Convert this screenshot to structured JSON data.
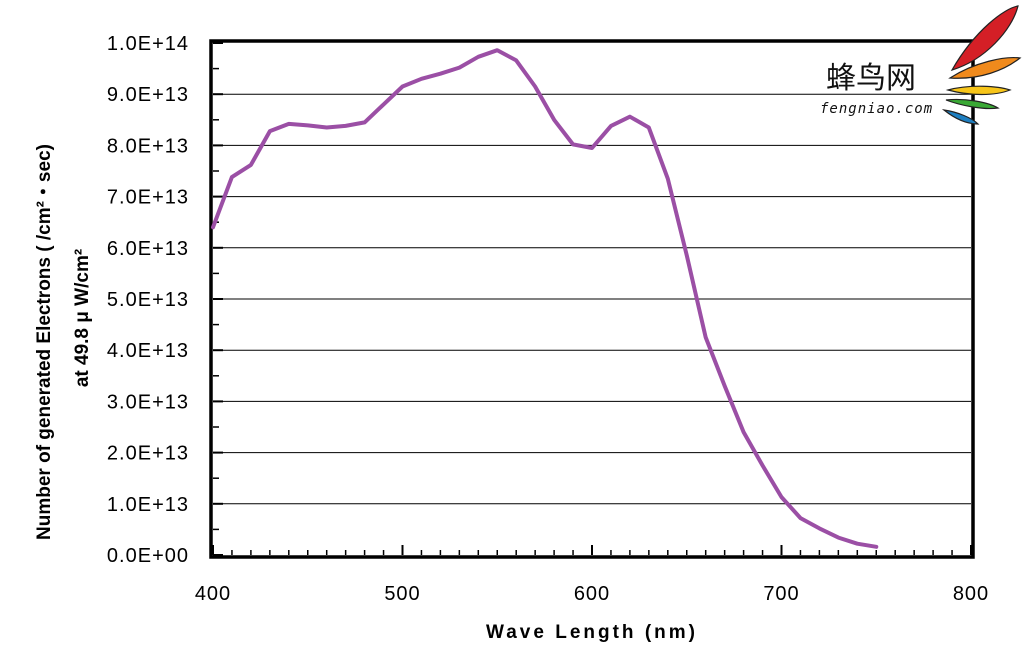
{
  "chart_data": {
    "type": "line",
    "xlabel": "Wave Length (nm)",
    "ylabel_line1": "Number of generated Electrons ( /cm²・sec)",
    "ylabel_line2": "at 49.8 μ W/cm²",
    "xlim": [
      400,
      800
    ],
    "ylim": [
      0,
      100000000000000.0
    ],
    "x_ticks": [
      "400",
      "500",
      "600",
      "700",
      "800"
    ],
    "x_tick_values": [
      400,
      500,
      600,
      700,
      800
    ],
    "y_ticks": [
      "0.0E+00",
      "1.0E+13",
      "2.0E+13",
      "3.0E+13",
      "4.0E+13",
      "5.0E+13",
      "6.0E+13",
      "7.0E+13",
      "8.0E+13",
      "9.0E+13",
      "1.0E+14"
    ],
    "y_tick_values": [
      0,
      10000000000000.0,
      20000000000000.0,
      30000000000000.0,
      40000000000000.0,
      50000000000000.0,
      60000000000000.0,
      70000000000000.0,
      80000000000000.0,
      90000000000000.0,
      100000000000000.0
    ],
    "grid": "horizontal",
    "line_color": "#9b4fa5",
    "series": [
      {
        "x": [
          400,
          410,
          420,
          430,
          440,
          450,
          460,
          470,
          480,
          490,
          500,
          510,
          520,
          530,
          540,
          550,
          560,
          570,
          580,
          590,
          600,
          610,
          620,
          630,
          640,
          650,
          660,
          670,
          680,
          690,
          700,
          710,
          720,
          730,
          740,
          750
        ],
        "values": [
          64000000000000.0,
          73800000000000.0,
          76200000000000.0,
          82800000000000.0,
          84200000000000.0,
          83900000000000.0,
          83500000000000.0,
          83800000000000.0,
          84500000000000.0,
          88000000000000.0,
          91500000000000.0,
          93000000000000.0,
          94000000000000.0,
          95200000000000.0,
          97300000000000.0,
          98600000000000.0,
          96600000000000.0,
          91500000000000.0,
          85000000000000.0,
          80200000000000.0,
          79500000000000.0,
          83800000000000.0,
          85600000000000.0,
          83500000000000.0,
          73500000000000.0,
          58500000000000.0,
          42500000000000.0,
          33000000000000.0,
          24000000000000.0,
          17500000000000.0,
          11300000000000.0,
          7200000000000.0,
          5200000000000.0,
          3400000000000.0,
          2200000000000.0,
          1600000000000.0
        ]
      }
    ]
  },
  "logo": {
    "cn": "蜂鸟网",
    "en": "fengniao.com",
    "colors": [
      "#d41f26",
      "#f08a1c",
      "#f7c519",
      "#3aa935",
      "#1e7fc1"
    ]
  }
}
